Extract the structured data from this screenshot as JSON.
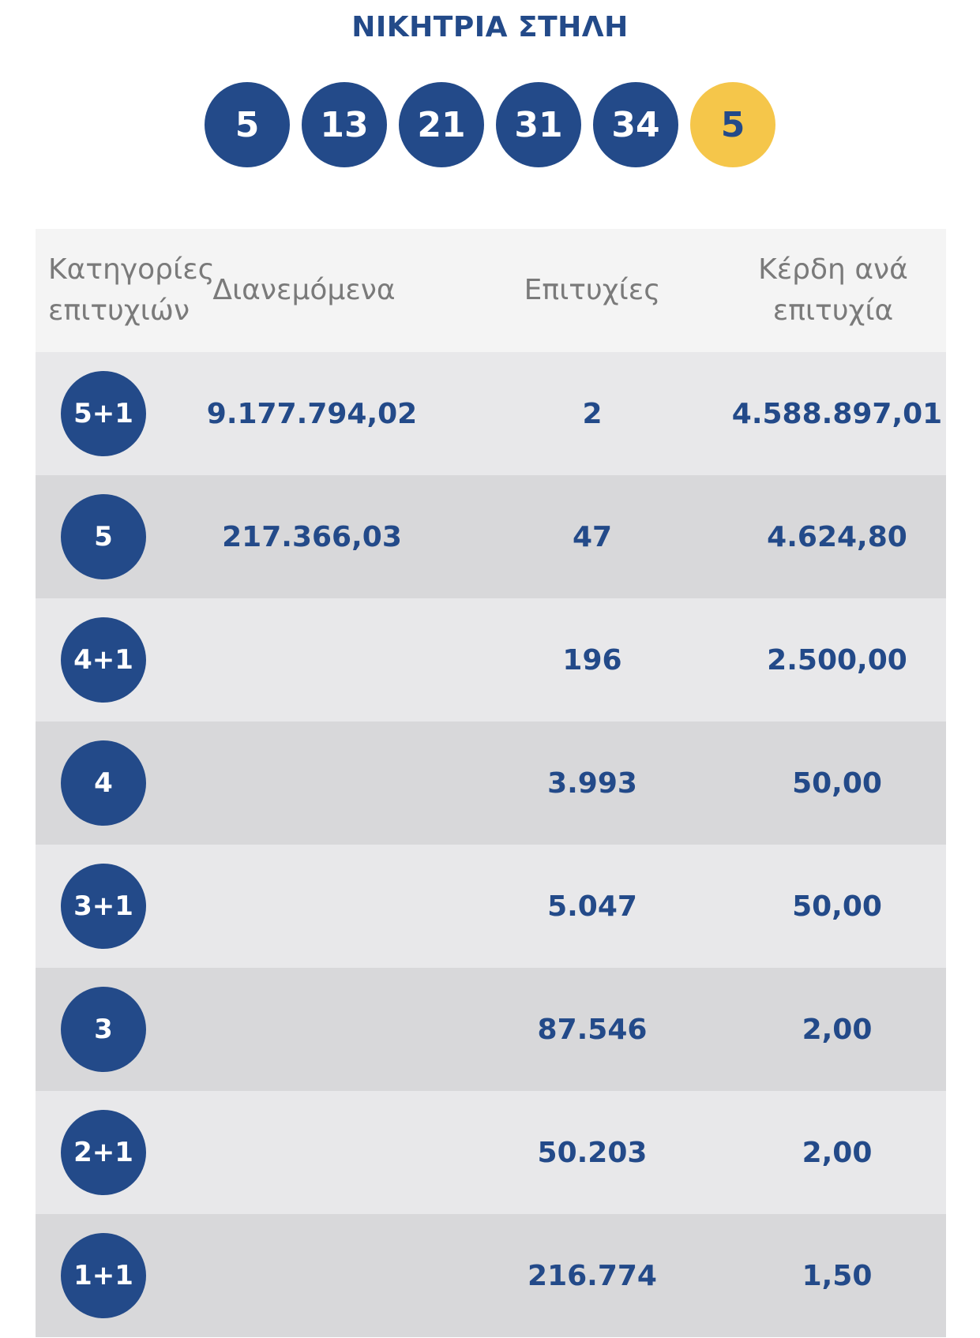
{
  "title": "ΝΙΚΗΤΡΙΑ ΣΤΗΛΗ",
  "winning_numbers": [
    "5",
    "13",
    "21",
    "31",
    "34"
  ],
  "bonus_number": "5",
  "colors": {
    "primary": "#234a89",
    "bonus": "#f5c64a",
    "header_bg": "#f4f4f4",
    "row_light": "#e8e8ea",
    "row_dark": "#d8d8da"
  },
  "table": {
    "headers": {
      "category_line1": "Κατηγορίες",
      "category_line2": "επιτυχιών",
      "distributed": "Διανεμόμενα",
      "wins": "Επιτυχίες",
      "prize_line1": "Κέρδη ανά",
      "prize_line2": "επιτυχία"
    },
    "rows": [
      {
        "category": "5+1",
        "distributed": "9.177.794,02",
        "wins": "2",
        "prize": "4.588.897,01"
      },
      {
        "category": "5",
        "distributed": "217.366,03",
        "wins": "47",
        "prize": "4.624,80"
      },
      {
        "category": "4+1",
        "distributed": "",
        "wins": "196",
        "prize": "2.500,00"
      },
      {
        "category": "4",
        "distributed": "",
        "wins": "3.993",
        "prize": "50,00"
      },
      {
        "category": "3+1",
        "distributed": "",
        "wins": "5.047",
        "prize": "50,00"
      },
      {
        "category": "3",
        "distributed": "",
        "wins": "87.546",
        "prize": "2,00"
      },
      {
        "category": "2+1",
        "distributed": "",
        "wins": "50.203",
        "prize": "2,00"
      },
      {
        "category": "1+1",
        "distributed": "",
        "wins": "216.774",
        "prize": "1,50"
      }
    ]
  }
}
